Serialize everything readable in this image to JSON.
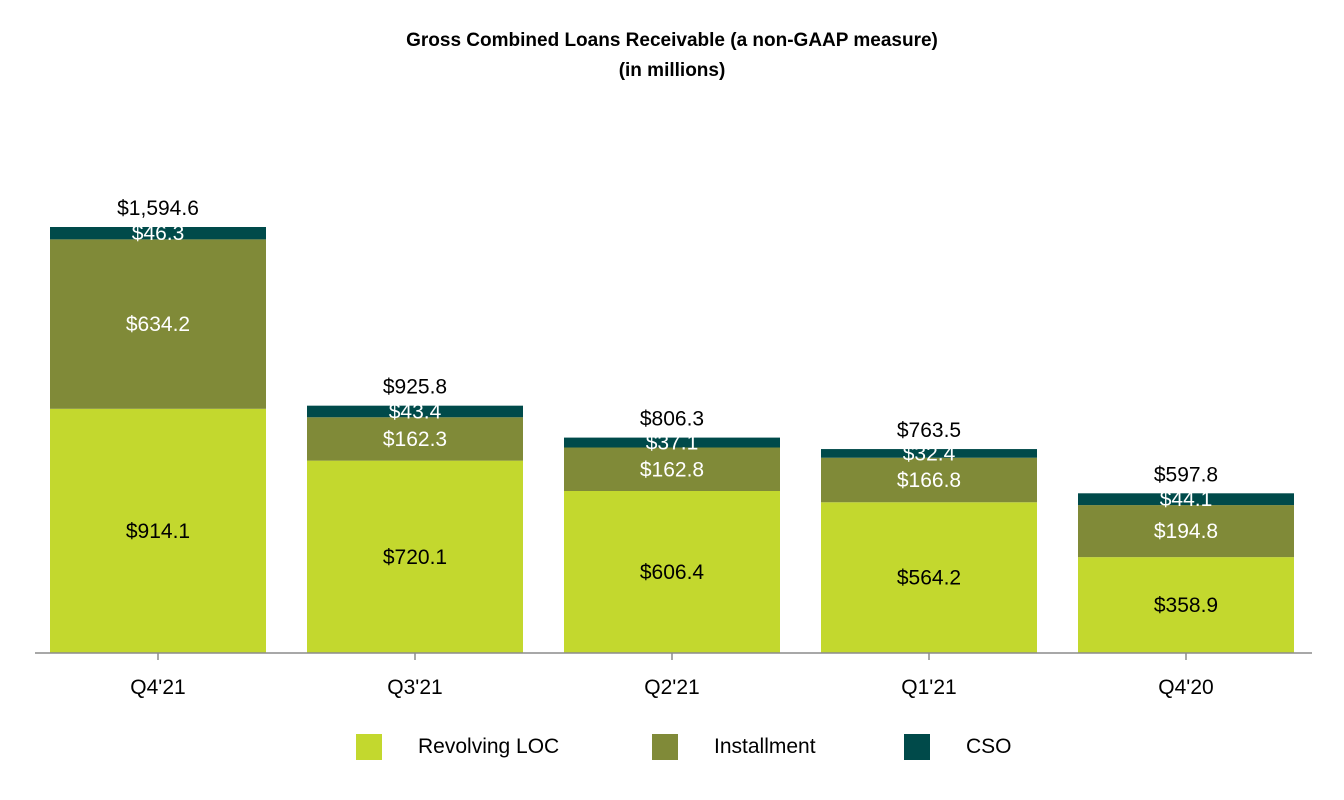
{
  "chart_data": {
    "type": "bar",
    "stacked": true,
    "title": "Gross Combined Loans Receivable (a non-GAAP measure)",
    "subtitle": "(in millions)",
    "categories": [
      "Q4'21",
      "Q3'21",
      "Q2'21",
      "Q1'21",
      "Q4'20"
    ],
    "series": [
      {
        "name": "Revolving LOC",
        "color": "#c3d82e",
        "label_color": "#000000",
        "values": [
          914.1,
          720.1,
          606.4,
          564.2,
          358.9
        ],
        "labels": [
          "$914.1",
          "$720.1",
          "$606.4",
          "$564.2",
          "$358.9"
        ]
      },
      {
        "name": "Installment",
        "color": "#808a38",
        "label_color": "#ffffff",
        "values": [
          634.2,
          162.3,
          162.8,
          166.8,
          194.8
        ],
        "labels": [
          "$634.2",
          "$162.3",
          "$162.8",
          "$166.8",
          "$194.8"
        ]
      },
      {
        "name": "CSO",
        "color": "#004a4a",
        "label_color": "#ffffff",
        "values": [
          46.3,
          43.4,
          37.1,
          32.4,
          44.1
        ],
        "labels": [
          "$46.3",
          "$43.4",
          "$37.1",
          "$32.4",
          "$44.1"
        ]
      }
    ],
    "totals": [
      1594.6,
      925.8,
      806.3,
      763.5,
      597.8
    ],
    "total_labels": [
      "$1,594.6",
      "$925.8",
      "$806.3",
      "$763.5",
      "$597.8"
    ],
    "ylim": [
      0,
      1594.6
    ],
    "grid": false,
    "legend_position": "bottom"
  }
}
